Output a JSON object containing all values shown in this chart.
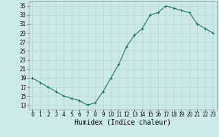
{
  "x": [
    0,
    1,
    2,
    3,
    4,
    5,
    6,
    7,
    8,
    9,
    10,
    11,
    12,
    13,
    14,
    15,
    16,
    17,
    18,
    19,
    20,
    21,
    22,
    23
  ],
  "y": [
    19,
    18,
    17,
    16,
    15,
    14.5,
    14,
    13,
    13.5,
    16,
    19,
    22,
    26,
    28.5,
    30,
    33,
    33.5,
    35,
    34.5,
    34,
    33.5,
    31,
    30,
    29
  ],
  "line_color": "#1a7060",
  "marker": "+",
  "marker_color": "#1a7060",
  "bg_color": "#cce8e8",
  "grid_color": "#b0d0d0",
  "xlabel": "Humidex (Indice chaleur)",
  "xlim": [
    -0.5,
    23.5
  ],
  "ylim": [
    12,
    36
  ],
  "yticks": [
    13,
    15,
    17,
    19,
    21,
    23,
    25,
    27,
    29,
    31,
    33,
    35
  ],
  "xtick_labels": [
    "0",
    "1",
    "2",
    "3",
    "4",
    "5",
    "6",
    "7",
    "8",
    "9",
    "10",
    "11",
    "12",
    "13",
    "14",
    "15",
    "16",
    "17",
    "18",
    "19",
    "20",
    "21",
    "22",
    "23"
  ],
  "xlabel_fontsize": 7,
  "tick_fontsize": 5.5,
  "linewidth": 0.8,
  "markersize": 3,
  "markeredgewidth": 0.8
}
